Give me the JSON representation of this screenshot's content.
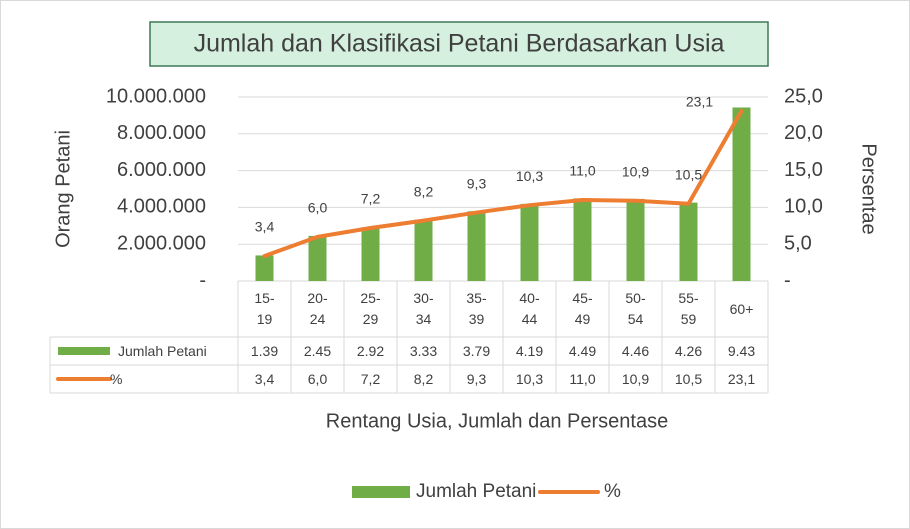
{
  "chart_data": {
    "type": "bar",
    "title": "Jumlah dan Klasifikasi Petani Berdasarkan Usia",
    "x_label": "Rentang Usia, Jumlah dan Persentase",
    "y_label": "Orang Petani",
    "y2_label": "Persentae",
    "categories": [
      "15-19",
      "20-24",
      "25-29",
      "30-34",
      "35-39",
      "40-44",
      "45-49",
      "50-54",
      "55-59",
      "60+"
    ],
    "series": [
      {
        "name": "Jumlah Petani",
        "type": "bar",
        "color": "#70ad47",
        "values": [
          1390000,
          2450000,
          2920000,
          3330000,
          3790000,
          4190000,
          4490000,
          4460000,
          4260000,
          9430000
        ],
        "value_labels": [
          "1.39",
          "2.45",
          "2.92",
          "3.33",
          "3.79",
          "4.19",
          "4.49",
          "4.46",
          "4.26",
          "9.43"
        ]
      },
      {
        "name": "%",
        "type": "line",
        "axis": "y2",
        "color": "#ed7d31",
        "values": [
          3.4,
          6.0,
          7.2,
          8.2,
          9.3,
          10.3,
          11.0,
          10.9,
          10.5,
          23.1
        ],
        "value_labels": [
          "3,4",
          "6,0",
          "7,2",
          "8,2",
          "9,3",
          "10,3",
          "11,0",
          "10,9",
          "10,5",
          "23,1"
        ]
      }
    ],
    "ylim": [
      0,
      10000000
    ],
    "yticks": [
      {
        "value": 0,
        "label": "-"
      },
      {
        "value": 2000000,
        "label": "2.000.000"
      },
      {
        "value": 4000000,
        "label": "4.000.000"
      },
      {
        "value": 6000000,
        "label": "6.000.000"
      },
      {
        "value": 8000000,
        "label": "8.000.000"
      },
      {
        "value": 10000000,
        "label": "10.000.000"
      }
    ],
    "y2lim": [
      0,
      25
    ],
    "y2ticks": [
      {
        "value": 0,
        "label": "-"
      },
      {
        "value": 5,
        "label": "5,0"
      },
      {
        "value": 10,
        "label": "10,0"
      },
      {
        "value": 15,
        "label": "15,0"
      },
      {
        "value": 20,
        "label": "20,0"
      },
      {
        "value": 25,
        "label": "25,0"
      }
    ],
    "grid": true,
    "legend": "bottom"
  }
}
